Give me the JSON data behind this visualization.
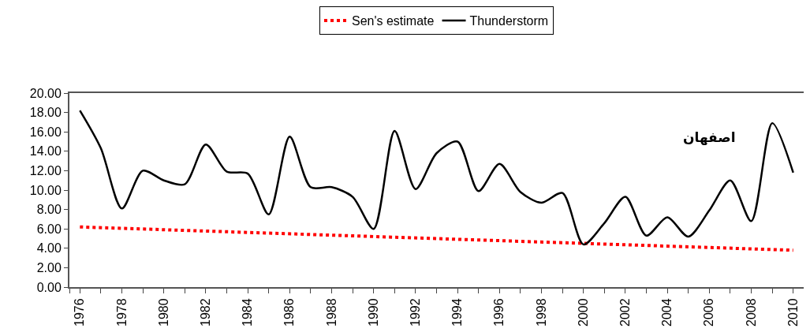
{
  "chart_data": {
    "type": "line",
    "legend": "top",
    "grid": false,
    "marker": "none",
    "x": [
      1976,
      1977,
      1978,
      1979,
      1980,
      1981,
      1982,
      1983,
      1984,
      1985,
      1986,
      1987,
      1988,
      1989,
      1990,
      1991,
      1992,
      1993,
      1994,
      1995,
      1996,
      1997,
      1998,
      1999,
      2000,
      2001,
      2002,
      2003,
      2004,
      2005,
      2006,
      2007,
      2008,
      2009,
      2010
    ],
    "xlim": [
      1975.5,
      2010.5
    ],
    "xticks": [
      {
        "value": 1975.5,
        "label": null
      },
      {
        "value": 1976,
        "label": "1976"
      },
      {
        "value": 1977,
        "label": null
      },
      {
        "value": 1978,
        "label": "1978"
      },
      {
        "value": 1979,
        "label": null
      },
      {
        "value": 1980,
        "label": "1980"
      },
      {
        "value": 1981,
        "label": null
      },
      {
        "value": 1982,
        "label": "1982"
      },
      {
        "value": 1983,
        "label": null
      },
      {
        "value": 1984,
        "label": "1984"
      },
      {
        "value": 1985,
        "label": null
      },
      {
        "value": 1986,
        "label": "1986"
      },
      {
        "value": 1987,
        "label": null
      },
      {
        "value": 1988,
        "label": "1988"
      },
      {
        "value": 1989,
        "label": null
      },
      {
        "value": 1990,
        "label": "1990"
      },
      {
        "value": 1991,
        "label": null
      },
      {
        "value": 1992,
        "label": "1992"
      },
      {
        "value": 1993,
        "label": null
      },
      {
        "value": 1994,
        "label": "1994"
      },
      {
        "value": 1995,
        "label": null
      },
      {
        "value": 1996,
        "label": "1996"
      },
      {
        "value": 1997,
        "label": null
      },
      {
        "value": 1998,
        "label": "1998"
      },
      {
        "value": 1999,
        "label": null
      },
      {
        "value": 2000,
        "label": "2000"
      },
      {
        "value": 2001,
        "label": null
      },
      {
        "value": 2002,
        "label": "2002"
      },
      {
        "value": 2003,
        "label": null
      },
      {
        "value": 2004,
        "label": "2004"
      },
      {
        "value": 2005,
        "label": null
      },
      {
        "value": 2006,
        "label": "2006"
      },
      {
        "value": 2007,
        "label": null
      },
      {
        "value": 2008,
        "label": "2008"
      },
      {
        "value": 2009,
        "label": null
      },
      {
        "value": 2010,
        "label": "2010"
      }
    ],
    "ylim": [
      0,
      20
    ],
    "yticks": [
      {
        "value": 0,
        "label": "0.00"
      },
      {
        "value": 2,
        "label": "2.00"
      },
      {
        "value": 4,
        "label": "4.00"
      },
      {
        "value": 6,
        "label": "6.00"
      },
      {
        "value": 8,
        "label": "8.00"
      },
      {
        "value": 10,
        "label": "10.00"
      },
      {
        "value": 12,
        "label": "12.00"
      },
      {
        "value": 14,
        "label": "14.00"
      },
      {
        "value": 16,
        "label": "16.00"
      },
      {
        "value": 18,
        "label": "18.00"
      },
      {
        "value": 20,
        "label": "20.00"
      }
    ],
    "annotations": [
      "اصفهان"
    ],
    "series": [
      {
        "name": "Sen's estimate",
        "color": "#ff0000",
        "line_style": "dotted",
        "x": [
          1976,
          2010
        ],
        "values": [
          6.2,
          3.8
        ]
      },
      {
        "name": "Thunderstorm",
        "color": "#000000",
        "line_style": "solid",
        "values": [
          18.2,
          14.3,
          8.1,
          12.0,
          11.0,
          10.6,
          14.7,
          11.9,
          11.7,
          7.5,
          15.5,
          10.3,
          10.3,
          9.3,
          6.0,
          16.1,
          10.1,
          13.8,
          15.0,
          9.9,
          12.7,
          9.8,
          8.7,
          9.7,
          4.4,
          6.6,
          9.3,
          5.3,
          7.2,
          5.2,
          7.9,
          11.0,
          6.8,
          16.9,
          11.8
        ]
      }
    ]
  }
}
